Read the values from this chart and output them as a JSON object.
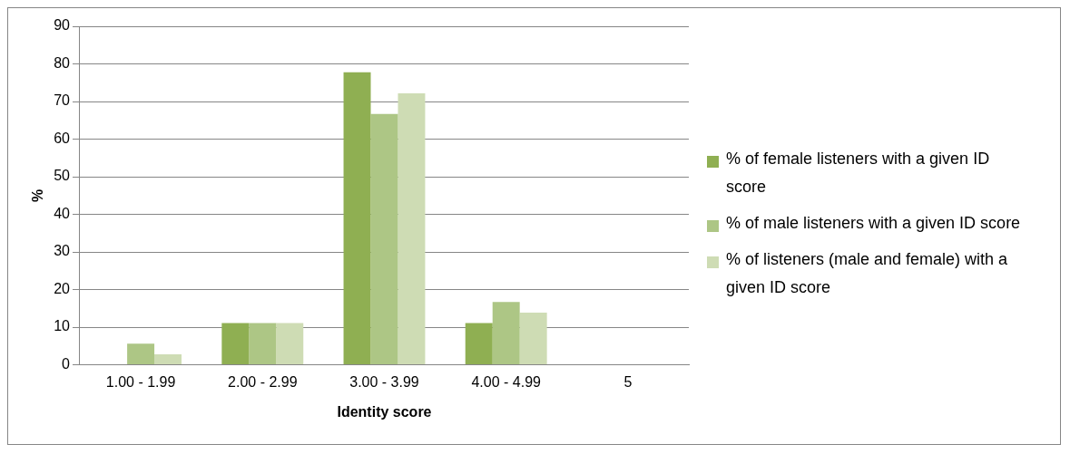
{
  "chart_data": {
    "type": "bar",
    "xlabel": "Identity score",
    "ylabel": "%",
    "categories": [
      "1.00 - 1.99",
      "2.00 - 2.99",
      "3.00 - 3.99",
      "4.00 - 4.99",
      "5"
    ],
    "series": [
      {
        "name": "% of female listeners with a given ID score",
        "color": "#8faf52",
        "values": [
          0,
          11.1,
          77.8,
          11.1,
          0
        ]
      },
      {
        "name": "% of male listeners with a given ID score",
        "color": "#adc685",
        "values": [
          5.6,
          11.1,
          66.7,
          16.7,
          0
        ]
      },
      {
        "name": "% of listeners (male and female) with a given ID score",
        "color": "#cedcb4",
        "values": [
          2.8,
          11.1,
          72.2,
          13.9,
          0
        ]
      }
    ],
    "ylim": [
      0,
      90
    ],
    "yticks": [
      0,
      10,
      20,
      30,
      40,
      50,
      60,
      70,
      80,
      90
    ],
    "grid": "y",
    "legend": "right"
  }
}
